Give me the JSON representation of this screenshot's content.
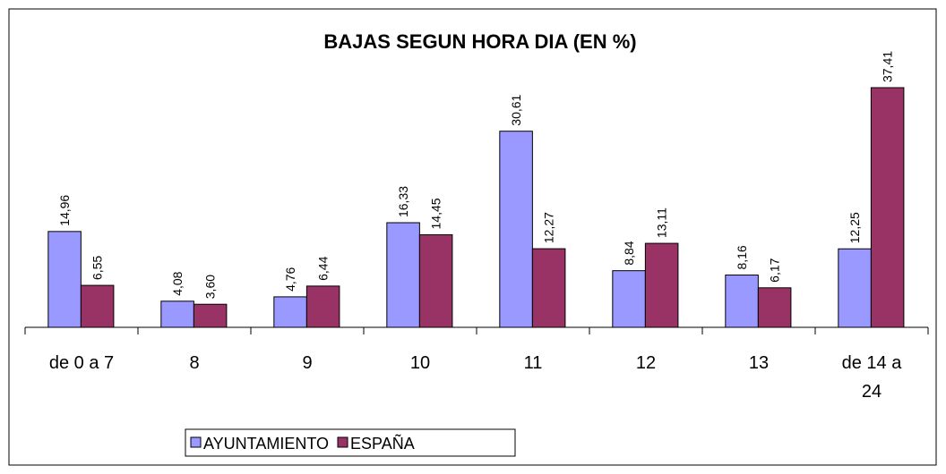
{
  "chart_data": {
    "type": "bar",
    "title": "BAJAS SEGUN HORA DIA (EN %)",
    "categories": [
      "de 0 a 7",
      "8",
      "9",
      "10",
      "11",
      "12",
      "13",
      "de 14 a 24"
    ],
    "series": [
      {
        "name": "AYUNTAMIENTO",
        "color": "#9999ff",
        "values": [
          14.96,
          4.08,
          4.76,
          16.33,
          30.61,
          8.84,
          8.16,
          12.25
        ],
        "value_labels": [
          "14,96",
          "4,08",
          "4,76",
          "16,33",
          "30,61",
          "8,84",
          "8,16",
          "12,25"
        ]
      },
      {
        "name": "ESPAÑA",
        "color": "#993366",
        "values": [
          6.55,
          3.6,
          6.44,
          14.45,
          12.27,
          13.11,
          6.17,
          37.41
        ],
        "value_labels": [
          "6,55",
          "3,60",
          "6,44",
          "14,45",
          "12,27",
          "13,11",
          "6,17",
          "37,41"
        ]
      }
    ],
    "legend": "bottom"
  }
}
